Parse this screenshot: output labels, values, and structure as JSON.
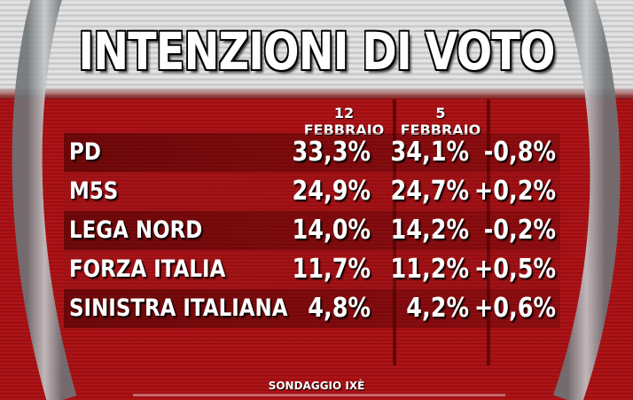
{
  "title": "INTENZIONI DI VOTO",
  "source": "SONDAGGIO IXÈ",
  "colors": {
    "background_red": "#b5161a",
    "title_band": "#d9d9d9",
    "text": "#ffffff",
    "ring": "#8f9497"
  },
  "chart_data": {
    "type": "table",
    "title": "INTENZIONI DI VOTO",
    "columns": [
      "12 FEBBRAIO",
      "5 FEBBRAIO",
      ""
    ],
    "rows": [
      {
        "party": "PD",
        "feb12": "33,3%",
        "feb5": "34,1%",
        "diff": "-0,8%"
      },
      {
        "party": "M5S",
        "feb12": "24,9%",
        "feb5": "24,7%",
        "diff": "+0,2%"
      },
      {
        "party": "LEGA NORD",
        "feb12": "14,0%",
        "feb5": "14,2%",
        "diff": "-0,2%"
      },
      {
        "party": "FORZA ITALIA",
        "feb12": "11,7%",
        "feb5": "11,2%",
        "diff": "+0,5%"
      },
      {
        "party": "SINISTRA ITALIANA",
        "feb12": "4,8%",
        "feb5": "4,2%",
        "diff": "+0,6%"
      }
    ],
    "values_12_febbraio": [
      33.3,
      24.9,
      14.0,
      11.7,
      4.8
    ],
    "values_5_febbraio": [
      34.1,
      24.7,
      14.2,
      11.2,
      4.2
    ],
    "change": [
      -0.8,
      0.2,
      -0.2,
      0.5,
      0.6
    ]
  }
}
